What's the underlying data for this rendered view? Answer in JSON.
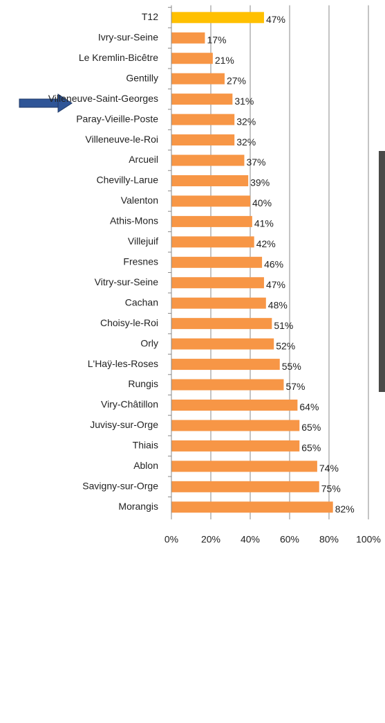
{
  "chart_data": {
    "type": "bar",
    "orientation": "horizontal",
    "categories": [
      "T12",
      "Ivry-sur-Seine",
      "Le Kremlin-Bicêtre",
      "Gentilly",
      "Villeneuve-Saint-Georges",
      "Paray-Vieille-Poste",
      "Villeneuve-le-Roi",
      "Arcueil",
      "Chevilly-Larue",
      "Valenton",
      "Athis-Mons",
      "Villejuif",
      "Fresnes",
      "Vitry-sur-Seine",
      "Cachan",
      "Choisy-le-Roi",
      "Orly",
      "L'Haÿ-les-Roses",
      "Rungis",
      "Viry-Châtillon",
      "Juvisy-sur-Orge",
      "Thiais",
      "Ablon",
      "Savigny-sur-Orge",
      "Morangis"
    ],
    "values": [
      47,
      17,
      21,
      27,
      31,
      32,
      32,
      37,
      39,
      40,
      41,
      42,
      46,
      47,
      48,
      51,
      52,
      55,
      57,
      64,
      65,
      65,
      74,
      75,
      82
    ],
    "value_labels": [
      "47%",
      "17%",
      "21%",
      "27%",
      "31%",
      "32%",
      "32%",
      "37%",
      "39%",
      "40%",
      "41%",
      "42%",
      "46%",
      "47%",
      "48%",
      "51%",
      "52%",
      "55%",
      "57%",
      "64%",
      "65%",
      "65%",
      "74%",
      "75%",
      "82%"
    ],
    "color": "#f79646",
    "highlight_color": "#ffc000",
    "highlight": [
      0
    ],
    "xlim": [
      0,
      100
    ],
    "xticks": [
      {
        "value": 0,
        "label": "0%"
      },
      {
        "value": 20,
        "label": "20%"
      },
      {
        "value": 40,
        "label": "40%"
      },
      {
        "value": 60,
        "label": "60%"
      },
      {
        "value": 80,
        "label": "80%"
      },
      {
        "value": 100,
        "label": "100%"
      }
    ],
    "grid": true
  }
}
